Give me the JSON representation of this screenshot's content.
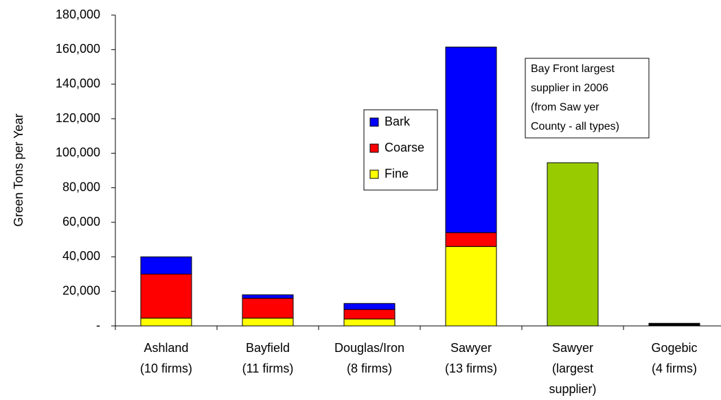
{
  "chart_data": {
    "type": "stacked_bar",
    "y_label": "Green Tons per Year",
    "categories": [
      [
        "Ashland",
        "(10 firms)"
      ],
      [
        "Bayfield",
        "(11 firms)"
      ],
      [
        "Douglas/Iron",
        "(8 firms)"
      ],
      [
        "Sawyer",
        "(13 firms)"
      ],
      [
        "Sawyer",
        "(largest",
        "supplier)"
      ],
      [
        "Gogebic",
        "(4 firms)"
      ]
    ],
    "series": [
      {
        "name": "Fine",
        "color": "#ffff00",
        "values": [
          4500,
          4500,
          4000,
          46000,
          null,
          null
        ]
      },
      {
        "name": "Coarse",
        "color": "#ff0000",
        "values": [
          25500,
          11500,
          5500,
          8000,
          null,
          null
        ]
      },
      {
        "name": "Bark",
        "color": "#0000ff",
        "values": [
          10000,
          2000,
          3500,
          107500,
          null,
          null
        ]
      },
      {
        "color": "#99cc00",
        "values": [
          null,
          null,
          null,
          null,
          94500,
          null
        ]
      },
      {
        "color": "#000000",
        "values": [
          null,
          null,
          null,
          null,
          null,
          1500
        ]
      }
    ],
    "ylim": [
      0,
      180000
    ],
    "yticks": [
      {
        "value": 0,
        "label": "-"
      },
      {
        "value": 20000,
        "label": "20,000"
      },
      {
        "value": 40000,
        "label": "40,000"
      },
      {
        "value": 60000,
        "label": "60,000"
      },
      {
        "value": 80000,
        "label": "80,000"
      },
      {
        "value": 100000,
        "label": "100,000"
      },
      {
        "value": 120000,
        "label": "120,000"
      },
      {
        "value": 140000,
        "label": "140,000"
      },
      {
        "value": 160000,
        "label": "160,000"
      },
      {
        "value": 180000,
        "label": "180,000"
      }
    ],
    "annotation": [
      "Bay Front largest",
      "supplier in 2006",
      "(from Saw yer",
      "County - all types)"
    ],
    "legend_order": [
      2,
      1,
      0
    ]
  }
}
